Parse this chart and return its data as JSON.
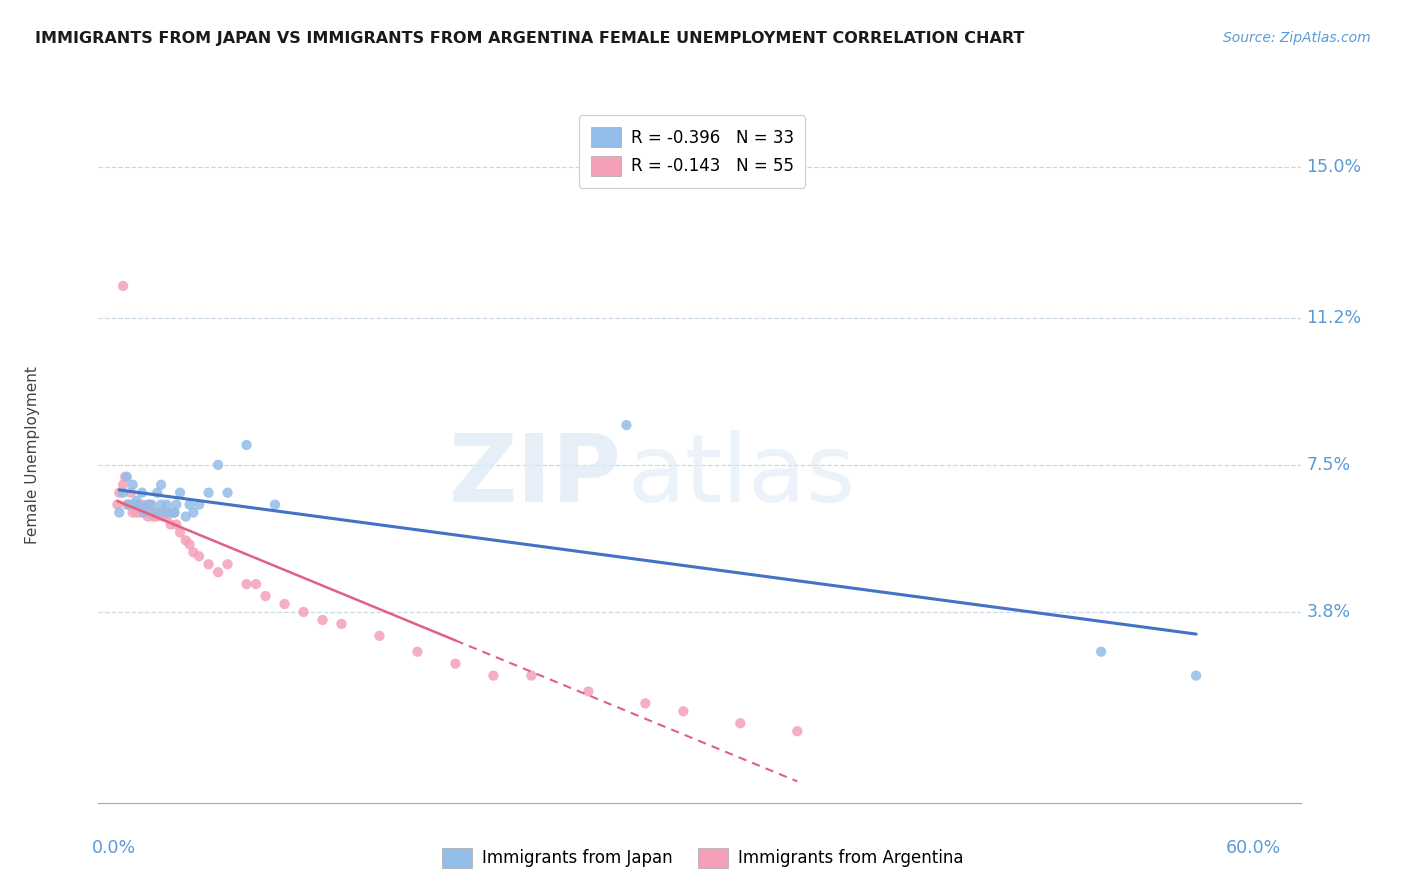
{
  "title": "IMMIGRANTS FROM JAPAN VS IMMIGRANTS FROM ARGENTINA FEMALE UNEMPLOYMENT CORRELATION CHART",
  "source_text": "Source: ZipAtlas.com",
  "ylabel": "Female Unemployment",
  "y_tick_labels": [
    "15.0%",
    "11.2%",
    "7.5%",
    "3.8%"
  ],
  "y_tick_values": [
    0.15,
    0.112,
    0.075,
    0.038
  ],
  "xlim": [
    -0.008,
    0.625
  ],
  "ylim": [
    -0.01,
    0.165
  ],
  "legend_r1": "R = -0.396",
  "legend_n1": "N = 33",
  "legend_r2": "R = -0.143",
  "legend_n2": "N = 55",
  "color_japan": "#92bde8",
  "color_argentina": "#f5a0b8",
  "trendline_japan": "#4472c4",
  "trendline_argentina": "#e06080",
  "watermark_zip": "ZIP",
  "watermark_atlas": "atlas",
  "background_color": "#ffffff",
  "japan_x": [
    0.003,
    0.005,
    0.007,
    0.008,
    0.01,
    0.012,
    0.013,
    0.015,
    0.016,
    0.018,
    0.02,
    0.022,
    0.023,
    0.025,
    0.025,
    0.027,
    0.028,
    0.03,
    0.032,
    0.033,
    0.035,
    0.038,
    0.04,
    0.042,
    0.045,
    0.05,
    0.055,
    0.06,
    0.07,
    0.085,
    0.27,
    0.52,
    0.57
  ],
  "japan_y": [
    0.063,
    0.068,
    0.072,
    0.065,
    0.07,
    0.066,
    0.065,
    0.068,
    0.063,
    0.065,
    0.065,
    0.063,
    0.068,
    0.065,
    0.07,
    0.063,
    0.065,
    0.063,
    0.063,
    0.065,
    0.068,
    0.062,
    0.065,
    0.063,
    0.065,
    0.068,
    0.075,
    0.068,
    0.08,
    0.065,
    0.085,
    0.028,
    0.022
  ],
  "argentina_x": [
    0.002,
    0.003,
    0.005,
    0.006,
    0.007,
    0.008,
    0.009,
    0.01,
    0.01,
    0.012,
    0.013,
    0.014,
    0.015,
    0.016,
    0.017,
    0.018,
    0.019,
    0.02,
    0.021,
    0.022,
    0.023,
    0.024,
    0.025,
    0.026,
    0.027,
    0.028,
    0.03,
    0.032,
    0.033,
    0.035,
    0.038,
    0.04,
    0.042,
    0.045,
    0.05,
    0.055,
    0.06,
    0.07,
    0.075,
    0.08,
    0.09,
    0.1,
    0.11,
    0.12,
    0.14,
    0.16,
    0.18,
    0.2,
    0.22,
    0.25,
    0.28,
    0.3,
    0.33,
    0.36,
    0.005
  ],
  "argentina_y": [
    0.065,
    0.068,
    0.07,
    0.072,
    0.065,
    0.065,
    0.068,
    0.063,
    0.065,
    0.063,
    0.065,
    0.063,
    0.065,
    0.063,
    0.063,
    0.062,
    0.065,
    0.063,
    0.062,
    0.063,
    0.062,
    0.063,
    0.063,
    0.062,
    0.063,
    0.062,
    0.06,
    0.063,
    0.06,
    0.058,
    0.056,
    0.055,
    0.053,
    0.052,
    0.05,
    0.048,
    0.05,
    0.045,
    0.045,
    0.042,
    0.04,
    0.038,
    0.036,
    0.035,
    0.032,
    0.028,
    0.025,
    0.022,
    0.022,
    0.018,
    0.015,
    0.013,
    0.01,
    0.008,
    0.12
  ]
}
